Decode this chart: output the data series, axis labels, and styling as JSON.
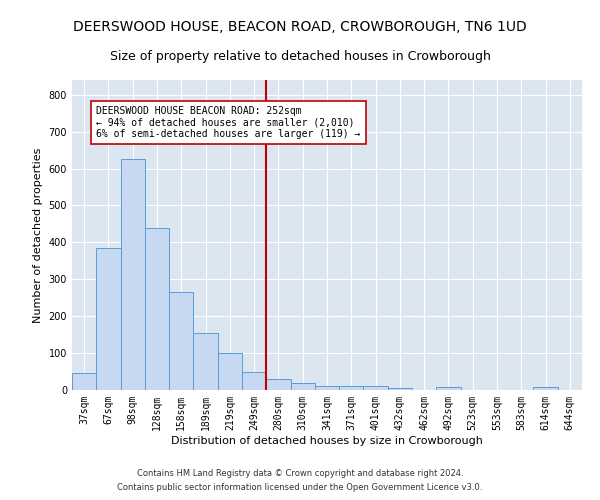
{
  "title": "DEERSWOOD HOUSE, BEACON ROAD, CROWBOROUGH, TN6 1UD",
  "subtitle": "Size of property relative to detached houses in Crowborough",
  "xlabel": "Distribution of detached houses by size in Crowborough",
  "ylabel": "Number of detached properties",
  "categories": [
    "37sqm",
    "67sqm",
    "98sqm",
    "128sqm",
    "158sqm",
    "189sqm",
    "219sqm",
    "249sqm",
    "280sqm",
    "310sqm",
    "341sqm",
    "371sqm",
    "401sqm",
    "432sqm",
    "462sqm",
    "492sqm",
    "523sqm",
    "553sqm",
    "583sqm",
    "614sqm",
    "644sqm"
  ],
  "values": [
    45,
    385,
    625,
    440,
    265,
    155,
    100,
    50,
    30,
    18,
    10,
    10,
    10,
    5,
    0,
    8,
    0,
    0,
    0,
    7,
    0
  ],
  "bar_color": "#c6d9f0",
  "bar_edge_color": "#5b9bd5",
  "vline_index": 7,
  "vline_color": "#c00000",
  "annotation_text": "DEERSWOOD HOUSE BEACON ROAD: 252sqm\n← 94% of detached houses are smaller (2,010)\n6% of semi-detached houses are larger (119) →",
  "annotation_box_color": "white",
  "annotation_box_edge": "#c00000",
  "ylim": [
    0,
    840
  ],
  "yticks": [
    0,
    100,
    200,
    300,
    400,
    500,
    600,
    700,
    800
  ],
  "plot_background": "#dce6f1",
  "footer_line1": "Contains HM Land Registry data © Crown copyright and database right 2024.",
  "footer_line2": "Contains public sector information licensed under the Open Government Licence v3.0.",
  "title_fontsize": 10,
  "subtitle_fontsize": 9,
  "xlabel_fontsize": 8,
  "ylabel_fontsize": 8,
  "tick_fontsize": 7,
  "annotation_fontsize": 7,
  "footer_fontsize": 6
}
